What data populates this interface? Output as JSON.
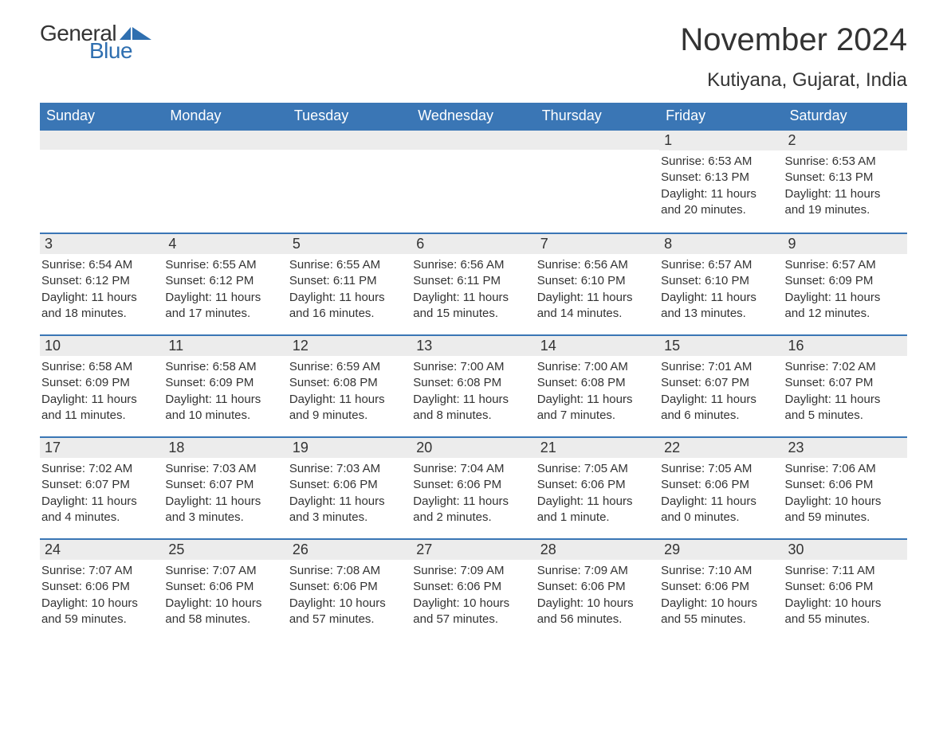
{
  "brand": {
    "word1": "General",
    "word2": "Blue",
    "brand_color": "#2f6fb0",
    "text_color": "#333333",
    "flag_color": "#2f6fb0"
  },
  "title": {
    "month_year": "November 2024",
    "location": "Kutiyana, Gujarat, India"
  },
  "styling": {
    "header_bg": "#3a76b5",
    "header_fg": "#ffffff",
    "daynum_bg": "#ececec",
    "row_border": "#3a76b5",
    "body_bg": "#ffffff",
    "text_color": "#333333",
    "title_fontsize": 40,
    "location_fontsize": 24,
    "header_fontsize": 18,
    "daynum_fontsize": 18,
    "body_fontsize": 15
  },
  "day_headers": [
    "Sunday",
    "Monday",
    "Tuesday",
    "Wednesday",
    "Thursday",
    "Friday",
    "Saturday"
  ],
  "weeks": [
    [
      {
        "n": "",
        "sunrise": "",
        "sunset": "",
        "daylight": ""
      },
      {
        "n": "",
        "sunrise": "",
        "sunset": "",
        "daylight": ""
      },
      {
        "n": "",
        "sunrise": "",
        "sunset": "",
        "daylight": ""
      },
      {
        "n": "",
        "sunrise": "",
        "sunset": "",
        "daylight": ""
      },
      {
        "n": "",
        "sunrise": "",
        "sunset": "",
        "daylight": ""
      },
      {
        "n": "1",
        "sunrise": "Sunrise: 6:53 AM",
        "sunset": "Sunset: 6:13 PM",
        "daylight": "Daylight: 11 hours and 20 minutes."
      },
      {
        "n": "2",
        "sunrise": "Sunrise: 6:53 AM",
        "sunset": "Sunset: 6:13 PM",
        "daylight": "Daylight: 11 hours and 19 minutes."
      }
    ],
    [
      {
        "n": "3",
        "sunrise": "Sunrise: 6:54 AM",
        "sunset": "Sunset: 6:12 PM",
        "daylight": "Daylight: 11 hours and 18 minutes."
      },
      {
        "n": "4",
        "sunrise": "Sunrise: 6:55 AM",
        "sunset": "Sunset: 6:12 PM",
        "daylight": "Daylight: 11 hours and 17 minutes."
      },
      {
        "n": "5",
        "sunrise": "Sunrise: 6:55 AM",
        "sunset": "Sunset: 6:11 PM",
        "daylight": "Daylight: 11 hours and 16 minutes."
      },
      {
        "n": "6",
        "sunrise": "Sunrise: 6:56 AM",
        "sunset": "Sunset: 6:11 PM",
        "daylight": "Daylight: 11 hours and 15 minutes."
      },
      {
        "n": "7",
        "sunrise": "Sunrise: 6:56 AM",
        "sunset": "Sunset: 6:10 PM",
        "daylight": "Daylight: 11 hours and 14 minutes."
      },
      {
        "n": "8",
        "sunrise": "Sunrise: 6:57 AM",
        "sunset": "Sunset: 6:10 PM",
        "daylight": "Daylight: 11 hours and 13 minutes."
      },
      {
        "n": "9",
        "sunrise": "Sunrise: 6:57 AM",
        "sunset": "Sunset: 6:09 PM",
        "daylight": "Daylight: 11 hours and 12 minutes."
      }
    ],
    [
      {
        "n": "10",
        "sunrise": "Sunrise: 6:58 AM",
        "sunset": "Sunset: 6:09 PM",
        "daylight": "Daylight: 11 hours and 11 minutes."
      },
      {
        "n": "11",
        "sunrise": "Sunrise: 6:58 AM",
        "sunset": "Sunset: 6:09 PM",
        "daylight": "Daylight: 11 hours and 10 minutes."
      },
      {
        "n": "12",
        "sunrise": "Sunrise: 6:59 AM",
        "sunset": "Sunset: 6:08 PM",
        "daylight": "Daylight: 11 hours and 9 minutes."
      },
      {
        "n": "13",
        "sunrise": "Sunrise: 7:00 AM",
        "sunset": "Sunset: 6:08 PM",
        "daylight": "Daylight: 11 hours and 8 minutes."
      },
      {
        "n": "14",
        "sunrise": "Sunrise: 7:00 AM",
        "sunset": "Sunset: 6:08 PM",
        "daylight": "Daylight: 11 hours and 7 minutes."
      },
      {
        "n": "15",
        "sunrise": "Sunrise: 7:01 AM",
        "sunset": "Sunset: 6:07 PM",
        "daylight": "Daylight: 11 hours and 6 minutes."
      },
      {
        "n": "16",
        "sunrise": "Sunrise: 7:02 AM",
        "sunset": "Sunset: 6:07 PM",
        "daylight": "Daylight: 11 hours and 5 minutes."
      }
    ],
    [
      {
        "n": "17",
        "sunrise": "Sunrise: 7:02 AM",
        "sunset": "Sunset: 6:07 PM",
        "daylight": "Daylight: 11 hours and 4 minutes."
      },
      {
        "n": "18",
        "sunrise": "Sunrise: 7:03 AM",
        "sunset": "Sunset: 6:07 PM",
        "daylight": "Daylight: 11 hours and 3 minutes."
      },
      {
        "n": "19",
        "sunrise": "Sunrise: 7:03 AM",
        "sunset": "Sunset: 6:06 PM",
        "daylight": "Daylight: 11 hours and 3 minutes."
      },
      {
        "n": "20",
        "sunrise": "Sunrise: 7:04 AM",
        "sunset": "Sunset: 6:06 PM",
        "daylight": "Daylight: 11 hours and 2 minutes."
      },
      {
        "n": "21",
        "sunrise": "Sunrise: 7:05 AM",
        "sunset": "Sunset: 6:06 PM",
        "daylight": "Daylight: 11 hours and 1 minute."
      },
      {
        "n": "22",
        "sunrise": "Sunrise: 7:05 AM",
        "sunset": "Sunset: 6:06 PM",
        "daylight": "Daylight: 11 hours and 0 minutes."
      },
      {
        "n": "23",
        "sunrise": "Sunrise: 7:06 AM",
        "sunset": "Sunset: 6:06 PM",
        "daylight": "Daylight: 10 hours and 59 minutes."
      }
    ],
    [
      {
        "n": "24",
        "sunrise": "Sunrise: 7:07 AM",
        "sunset": "Sunset: 6:06 PM",
        "daylight": "Daylight: 10 hours and 59 minutes."
      },
      {
        "n": "25",
        "sunrise": "Sunrise: 7:07 AM",
        "sunset": "Sunset: 6:06 PM",
        "daylight": "Daylight: 10 hours and 58 minutes."
      },
      {
        "n": "26",
        "sunrise": "Sunrise: 7:08 AM",
        "sunset": "Sunset: 6:06 PM",
        "daylight": "Daylight: 10 hours and 57 minutes."
      },
      {
        "n": "27",
        "sunrise": "Sunrise: 7:09 AM",
        "sunset": "Sunset: 6:06 PM",
        "daylight": "Daylight: 10 hours and 57 minutes."
      },
      {
        "n": "28",
        "sunrise": "Sunrise: 7:09 AM",
        "sunset": "Sunset: 6:06 PM",
        "daylight": "Daylight: 10 hours and 56 minutes."
      },
      {
        "n": "29",
        "sunrise": "Sunrise: 7:10 AM",
        "sunset": "Sunset: 6:06 PM",
        "daylight": "Daylight: 10 hours and 55 minutes."
      },
      {
        "n": "30",
        "sunrise": "Sunrise: 7:11 AM",
        "sunset": "Sunset: 6:06 PM",
        "daylight": "Daylight: 10 hours and 55 minutes."
      }
    ]
  ]
}
